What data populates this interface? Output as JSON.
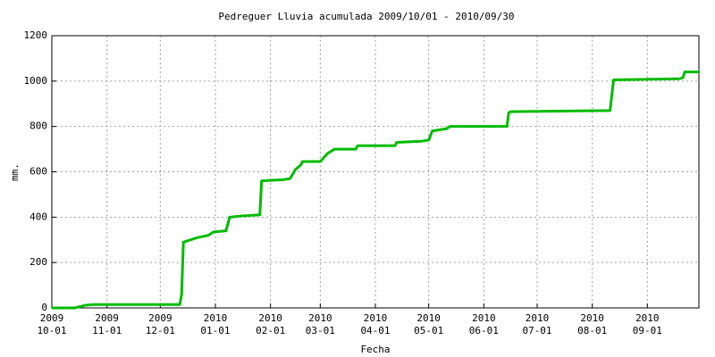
{
  "chart_data": {
    "type": "line",
    "title": "Pedreguer Lluvia acumulada 2009/10/01 - 2010/09/30",
    "x_label": "Fecha",
    "y_label": "mm.",
    "x": [
      "2009-10-01",
      "2009-10-14",
      "2009-10-20",
      "2009-10-25",
      "2009-12-12",
      "2009-12-13",
      "2009-12-14",
      "2009-12-18",
      "2009-12-22",
      "2009-12-28",
      "2009-12-31",
      "2010-01-07",
      "2010-01-09",
      "2010-01-15",
      "2010-01-26",
      "2010-01-27",
      "2010-02-08",
      "2010-02-12",
      "2010-02-15",
      "2010-02-18",
      "2010-02-19",
      "2010-03-01",
      "2010-03-05",
      "2010-03-08",
      "2010-03-09",
      "2010-03-21",
      "2010-03-22",
      "2010-04-12",
      "2010-04-13",
      "2010-04-27",
      "2010-05-01",
      "2010-05-03",
      "2010-05-11",
      "2010-05-13",
      "2010-06-14",
      "2010-06-15",
      "2010-06-16",
      "2010-08-11",
      "2010-08-13",
      "2010-09-19",
      "2010-09-21",
      "2010-09-22",
      "2010-09-30"
    ],
    "series": [
      {
        "name": "Lluvia acumulada",
        "color": "#00bb00",
        "values": [
          0,
          0,
          12,
          15,
          15,
          60,
          290,
          300,
          310,
          320,
          335,
          340,
          400,
          405,
          410,
          560,
          565,
          570,
          610,
          630,
          645,
          645,
          680,
          695,
          700,
          700,
          715,
          715,
          730,
          735,
          740,
          780,
          790,
          800,
          800,
          860,
          865,
          870,
          1005,
          1010,
          1015,
          1040,
          1040
        ]
      }
    ],
    "xlim": [
      "2009-10-01",
      "2010-09-30"
    ],
    "xticks": [
      {
        "value": "2009-10-01",
        "label": "2009\n10-01"
      },
      {
        "value": "2009-11-01",
        "label": "2009\n11-01"
      },
      {
        "value": "2009-12-01",
        "label": "2009\n12-01"
      },
      {
        "value": "2010-01-01",
        "label": "2010\n01-01"
      },
      {
        "value": "2010-02-01",
        "label": "2010\n02-01"
      },
      {
        "value": "2010-03-01",
        "label": "2010\n03-01"
      },
      {
        "value": "2010-04-01",
        "label": "2010\n04-01"
      },
      {
        "value": "2010-05-01",
        "label": "2010\n05-01"
      },
      {
        "value": "2010-06-01",
        "label": "2010\n06-01"
      },
      {
        "value": "2010-07-01",
        "label": "2010\n07-01"
      },
      {
        "value": "2010-08-01",
        "label": "2010\n08-01"
      },
      {
        "value": "2010-09-01",
        "label": "2010\n09-01"
      }
    ],
    "ylim": [
      0,
      1200
    ],
    "yticks": [
      0,
      200,
      400,
      600,
      800,
      1000,
      1200
    ],
    "grid": true
  }
}
